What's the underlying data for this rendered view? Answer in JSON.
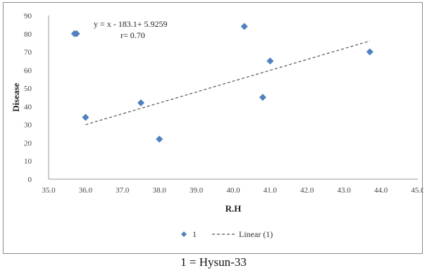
{
  "chart_data": {
    "type": "scatter",
    "title": "",
    "xlabel": "R.H",
    "ylabel": "Disease",
    "xlim": [
      35.0,
      45.0
    ],
    "ylim": [
      0,
      90
    ],
    "x_ticks": [
      35.0,
      36.0,
      37.0,
      38.0,
      39.0,
      40.0,
      41.0,
      42.0,
      43.0,
      44.0,
      45.0
    ],
    "y_ticks": [
      0,
      10,
      20,
      30,
      40,
      50,
      60,
      70,
      80,
      90
    ],
    "x_tick_labels": [
      "35.0",
      "36.0",
      "37.0",
      "38.0",
      "39.0",
      "40.0",
      "41.0",
      "42.0",
      "43.0",
      "44.0",
      "45.0"
    ],
    "y_tick_labels": [
      "0",
      "10",
      "20",
      "30",
      "40",
      "50",
      "60",
      "70",
      "80",
      "90"
    ],
    "grid": false,
    "series": [
      {
        "name": "1",
        "color": "#4f81bd",
        "marker": "diamond",
        "points": [
          {
            "x": 35.7,
            "y": 80
          },
          {
            "x": 36.0,
            "y": 34
          },
          {
            "x": 37.5,
            "y": 42
          },
          {
            "x": 38.0,
            "y": 22
          },
          {
            "x": 40.3,
            "y": 84
          },
          {
            "x": 40.8,
            "y": 45
          },
          {
            "x": 41.0,
            "y": 65
          },
          {
            "x": 43.7,
            "y": 70
          }
        ]
      }
    ],
    "trendline": {
      "name": "Linear (1)",
      "type": "linear",
      "x_range": [
        36.0,
        43.7
      ],
      "y_range": [
        30,
        76
      ],
      "color": "#555555",
      "style": "dashed"
    },
    "annotations": {
      "equation": "y = x - 183.1+ 5.9259",
      "r_value": "r= 0.70"
    },
    "legend": {
      "placement": "bottom",
      "entries": [
        "1",
        "Linear (1)"
      ]
    }
  },
  "caption": "1 = Hysun-33"
}
